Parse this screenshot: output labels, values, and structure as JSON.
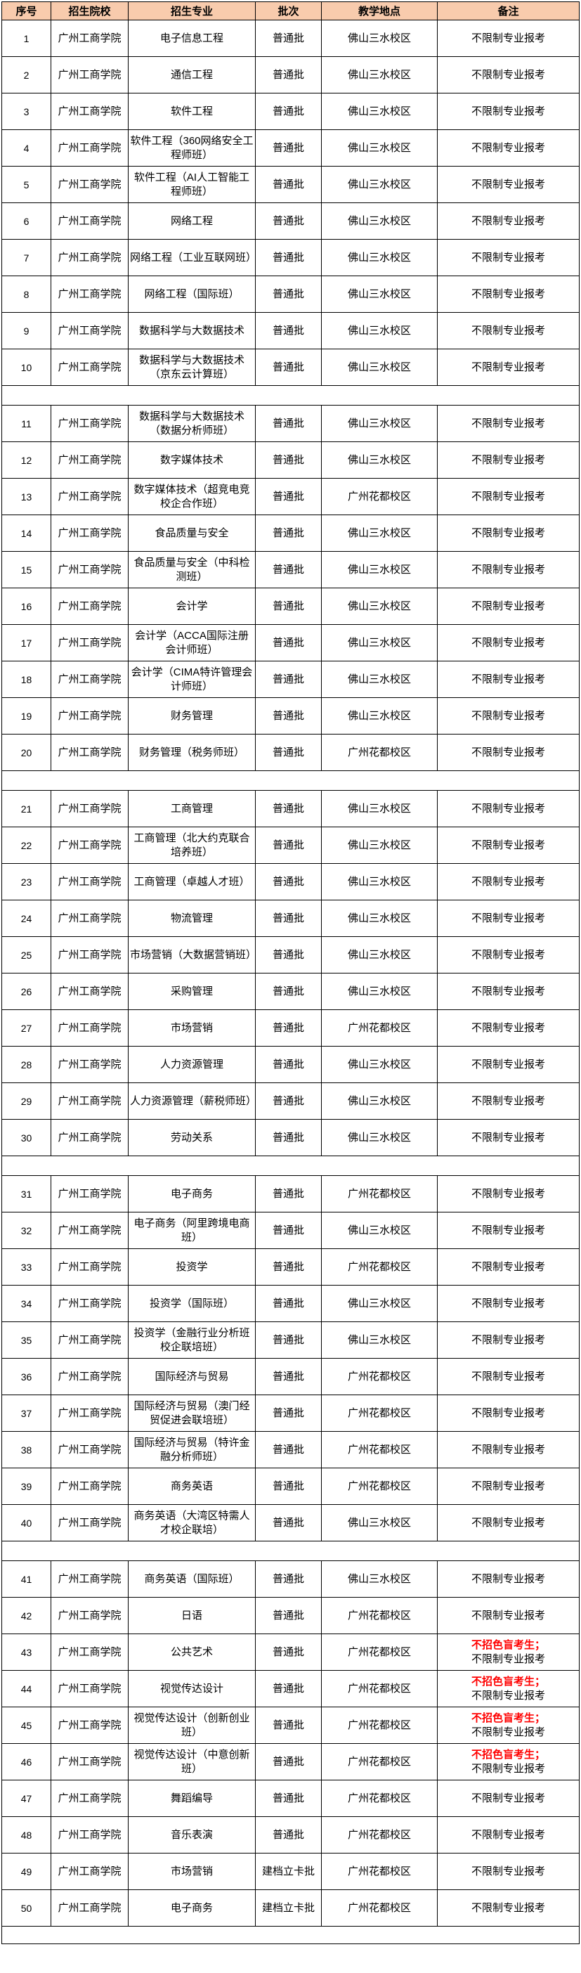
{
  "colors": {
    "header_bg": "#F8CBAD",
    "border": "#000000",
    "text": "#000000",
    "warning_red": "#FF0000"
  },
  "table": {
    "columns": [
      {
        "label": "序号"
      },
      {
        "label": "招生院校"
      },
      {
        "label": "招生专业"
      },
      {
        "label": "批次"
      },
      {
        "label": "教学地点"
      },
      {
        "label": "备注"
      }
    ],
    "separator_after": [
      10,
      20,
      30,
      40,
      50
    ],
    "rows": [
      {
        "num": "1",
        "college": "广州工商学院",
        "major": "电子信息工程",
        "batch": "普通批",
        "location": "佛山三水校区",
        "remark": "不限制专业报考"
      },
      {
        "num": "2",
        "college": "广州工商学院",
        "major": "通信工程",
        "batch": "普通批",
        "location": "佛山三水校区",
        "remark": "不限制专业报考"
      },
      {
        "num": "3",
        "college": "广州工商学院",
        "major": "软件工程",
        "batch": "普通批",
        "location": "佛山三水校区",
        "remark": "不限制专业报考"
      },
      {
        "num": "4",
        "college": "广州工商学院",
        "major": "软件工程（360网络安全工程师班）",
        "batch": "普通批",
        "location": "佛山三水校区",
        "remark": "不限制专业报考"
      },
      {
        "num": "5",
        "college": "广州工商学院",
        "major": "软件工程（AI人工智能工程师班）",
        "batch": "普通批",
        "location": "佛山三水校区",
        "remark": "不限制专业报考"
      },
      {
        "num": "6",
        "college": "广州工商学院",
        "major": "网络工程",
        "batch": "普通批",
        "location": "佛山三水校区",
        "remark": "不限制专业报考"
      },
      {
        "num": "7",
        "college": "广州工商学院",
        "major": "网络工程（工业互联网班）",
        "batch": "普通批",
        "location": "佛山三水校区",
        "remark": "不限制专业报考"
      },
      {
        "num": "8",
        "college": "广州工商学院",
        "major": "网络工程（国际班）",
        "batch": "普通批",
        "location": "佛山三水校区",
        "remark": "不限制专业报考"
      },
      {
        "num": "9",
        "college": "广州工商学院",
        "major": "数据科学与大数据技术",
        "batch": "普通批",
        "location": "佛山三水校区",
        "remark": "不限制专业报考"
      },
      {
        "num": "10",
        "college": "广州工商学院",
        "major": "数据科学与大数据技术（京东云计算班）",
        "batch": "普通批",
        "location": "佛山三水校区",
        "remark": "不限制专业报考"
      },
      {
        "num": "11",
        "college": "广州工商学院",
        "major": "数据科学与大数据技术（数据分析师班）",
        "batch": "普通批",
        "location": "佛山三水校区",
        "remark": "不限制专业报考"
      },
      {
        "num": "12",
        "college": "广州工商学院",
        "major": "数字媒体技术",
        "batch": "普通批",
        "location": "佛山三水校区",
        "remark": "不限制专业报考"
      },
      {
        "num": "13",
        "college": "广州工商学院",
        "major": "数字媒体技术（超竞电竞校企合作班）",
        "batch": "普通批",
        "location": "广州花都校区",
        "remark": "不限制专业报考"
      },
      {
        "num": "14",
        "college": "广州工商学院",
        "major": "食品质量与安全",
        "batch": "普通批",
        "location": "佛山三水校区",
        "remark": "不限制专业报考"
      },
      {
        "num": "15",
        "college": "广州工商学院",
        "major": "食品质量与安全（中科检测班）",
        "batch": "普通批",
        "location": "佛山三水校区",
        "remark": "不限制专业报考"
      },
      {
        "num": "16",
        "college": "广州工商学院",
        "major": "会计学",
        "batch": "普通批",
        "location": "佛山三水校区",
        "remark": "不限制专业报考"
      },
      {
        "num": "17",
        "college": "广州工商学院",
        "major": "会计学（ACCA国际注册会计师班）",
        "batch": "普通批",
        "location": "佛山三水校区",
        "remark": "不限制专业报考"
      },
      {
        "num": "18",
        "college": "广州工商学院",
        "major": "会计学（CIMA特许管理会计师班）",
        "batch": "普通批",
        "location": "佛山三水校区",
        "remark": "不限制专业报考"
      },
      {
        "num": "19",
        "college": "广州工商学院",
        "major": "财务管理",
        "batch": "普通批",
        "location": "佛山三水校区",
        "remark": "不限制专业报考"
      },
      {
        "num": "20",
        "college": "广州工商学院",
        "major": "财务管理（税务师班）",
        "batch": "普通批",
        "location": "广州花都校区",
        "remark": "不限制专业报考"
      },
      {
        "num": "21",
        "college": "广州工商学院",
        "major": "工商管理",
        "batch": "普通批",
        "location": "佛山三水校区",
        "remark": "不限制专业报考"
      },
      {
        "num": "22",
        "college": "广州工商学院",
        "major": "工商管理（北大约克联合培养班）",
        "batch": "普通批",
        "location": "佛山三水校区",
        "remark": "不限制专业报考"
      },
      {
        "num": "23",
        "college": "广州工商学院",
        "major": "工商管理（卓越人才班）",
        "batch": "普通批",
        "location": "佛山三水校区",
        "remark": "不限制专业报考"
      },
      {
        "num": "24",
        "college": "广州工商学院",
        "major": "物流管理",
        "batch": "普通批",
        "location": "佛山三水校区",
        "remark": "不限制专业报考"
      },
      {
        "num": "25",
        "college": "广州工商学院",
        "major": "市场营销（大数据营销班）",
        "batch": "普通批",
        "location": "佛山三水校区",
        "remark": "不限制专业报考"
      },
      {
        "num": "26",
        "college": "广州工商学院",
        "major": "采购管理",
        "batch": "普通批",
        "location": "佛山三水校区",
        "remark": "不限制专业报考"
      },
      {
        "num": "27",
        "college": "广州工商学院",
        "major": "市场营销",
        "batch": "普通批",
        "location": "广州花都校区",
        "remark": "不限制专业报考"
      },
      {
        "num": "28",
        "college": "广州工商学院",
        "major": "人力资源管理",
        "batch": "普通批",
        "location": "佛山三水校区",
        "remark": "不限制专业报考"
      },
      {
        "num": "29",
        "college": "广州工商学院",
        "major": "人力资源管理（薪税师班）",
        "batch": "普通批",
        "location": "佛山三水校区",
        "remark": "不限制专业报考"
      },
      {
        "num": "30",
        "college": "广州工商学院",
        "major": "劳动关系",
        "batch": "普通批",
        "location": "佛山三水校区",
        "remark": "不限制专业报考"
      },
      {
        "num": "31",
        "college": "广州工商学院",
        "major": "电子商务",
        "batch": "普通批",
        "location": "广州花都校区",
        "remark": "不限制专业报考"
      },
      {
        "num": "32",
        "college": "广州工商学院",
        "major": "电子商务（阿里跨境电商班）",
        "batch": "普通批",
        "location": "佛山三水校区",
        "remark": "不限制专业报考"
      },
      {
        "num": "33",
        "college": "广州工商学院",
        "major": "投资学",
        "batch": "普通批",
        "location": "广州花都校区",
        "remark": "不限制专业报考"
      },
      {
        "num": "34",
        "college": "广州工商学院",
        "major": "投资学（国际班）",
        "batch": "普通批",
        "location": "佛山三水校区",
        "remark": "不限制专业报考"
      },
      {
        "num": "35",
        "college": "广州工商学院",
        "major": "投资学（金融行业分析班校企联培班）",
        "batch": "普通批",
        "location": "佛山三水校区",
        "remark": "不限制专业报考"
      },
      {
        "num": "36",
        "college": "广州工商学院",
        "major": "国际经济与贸易",
        "batch": "普通批",
        "location": "广州花都校区",
        "remark": "不限制专业报考"
      },
      {
        "num": "37",
        "college": "广州工商学院",
        "major": "国际经济与贸易（澳门经贸促进会联培班）",
        "batch": "普通批",
        "location": "广州花都校区",
        "remark": "不限制专业报考"
      },
      {
        "num": "38",
        "college": "广州工商学院",
        "major": "国际经济与贸易（特许金融分析师班）",
        "batch": "普通批",
        "location": "广州花都校区",
        "remark": "不限制专业报考"
      },
      {
        "num": "39",
        "college": "广州工商学院",
        "major": "商务英语",
        "batch": "普通批",
        "location": "广州花都校区",
        "remark": "不限制专业报考"
      },
      {
        "num": "40",
        "college": "广州工商学院",
        "major": "商务英语（大湾区特需人才校企联培）",
        "batch": "普通批",
        "location": "佛山三水校区",
        "remark": "不限制专业报考"
      },
      {
        "num": "41",
        "college": "广州工商学院",
        "major": "商务英语（国际班）",
        "batch": "普通批",
        "location": "佛山三水校区",
        "remark": "不限制专业报考"
      },
      {
        "num": "42",
        "college": "广州工商学院",
        "major": "日语",
        "batch": "普通批",
        "location": "广州花都校区",
        "remark": "不限制专业报考"
      },
      {
        "num": "43",
        "college": "广州工商学院",
        "major": "公共艺术",
        "batch": "普通批",
        "location": "广州花都校区",
        "remark_red": "不招色盲考生；",
        "remark": "不限制专业报考"
      },
      {
        "num": "44",
        "college": "广州工商学院",
        "major": "视觉传达设计",
        "batch": "普通批",
        "location": "广州花都校区",
        "remark_red": "不招色盲考生；",
        "remark": "不限制专业报考"
      },
      {
        "num": "45",
        "college": "广州工商学院",
        "major": "视觉传达设计（创新创业班）",
        "batch": "普通批",
        "location": "广州花都校区",
        "remark_red": "不招色盲考生；",
        "remark": "不限制专业报考"
      },
      {
        "num": "46",
        "college": "广州工商学院",
        "major": "视觉传达设计（中意创新班）",
        "batch": "普通批",
        "location": "广州花都校区",
        "remark_red": "不招色盲考生；",
        "remark": "不限制专业报考"
      },
      {
        "num": "47",
        "college": "广州工商学院",
        "major": "舞蹈编导",
        "batch": "普通批",
        "location": "广州花都校区",
        "remark": "不限制专业报考"
      },
      {
        "num": "48",
        "college": "广州工商学院",
        "major": "音乐表演",
        "batch": "普通批",
        "location": "广州花都校区",
        "remark": "不限制专业报考"
      },
      {
        "num": "49",
        "college": "广州工商学院",
        "major": "市场营销",
        "batch": "建档立卡批",
        "location": "广州花都校区",
        "remark": "不限制专业报考"
      },
      {
        "num": "50",
        "college": "广州工商学院",
        "major": "电子商务",
        "batch": "建档立卡批",
        "location": "广州花都校区",
        "remark": "不限制专业报考"
      }
    ]
  }
}
